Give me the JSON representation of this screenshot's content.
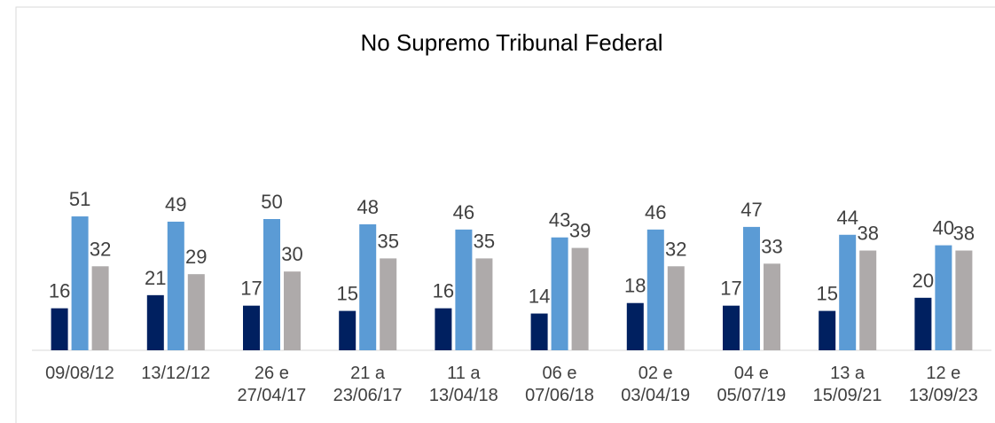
{
  "chart_data": {
    "type": "bar",
    "title": "No Supremo Tribunal Federal",
    "categories": [
      "09/08/12",
      "13/12/12",
      "26 e\n27/04/17",
      "21 a\n23/06/17",
      "11 a\n13/04/18",
      "06 e\n07/06/18",
      "02 e\n03/04/19",
      "04 e\n05/07/19",
      "13 a\n15/09/21",
      "12 e\n13/09/23"
    ],
    "series": [
      {
        "color": "#002060",
        "values": [
          16,
          21,
          17,
          15,
          16,
          14,
          18,
          17,
          15,
          20
        ]
      },
      {
        "color": "#5b9bd5",
        "values": [
          51,
          49,
          50,
          48,
          46,
          43,
          46,
          47,
          44,
          40
        ]
      },
      {
        "color": "#aeaaaa",
        "values": [
          32,
          29,
          30,
          35,
          35,
          39,
          32,
          33,
          38,
          38
        ]
      }
    ],
    "ylim": [
      0,
      60
    ]
  }
}
